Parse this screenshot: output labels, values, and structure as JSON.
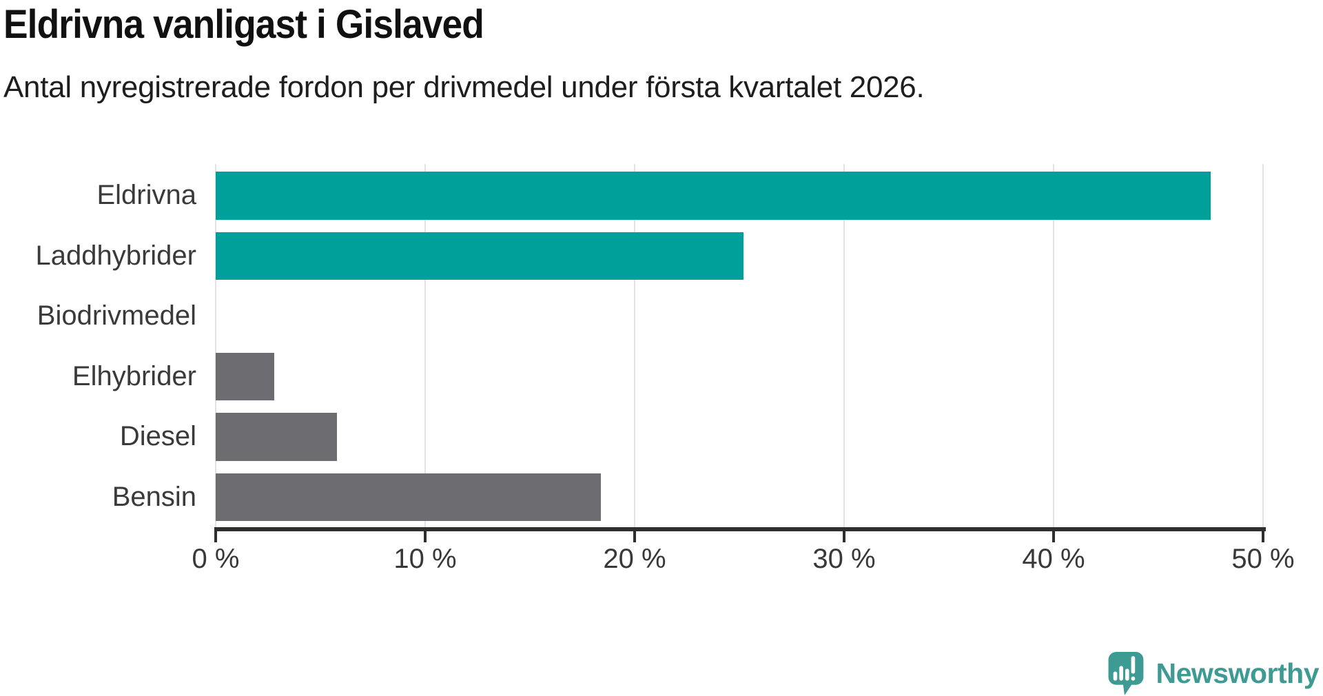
{
  "header": {
    "title": "Eldrivna vanligast i Gislaved",
    "subtitle": "Antal nyregistrerade fordon per drivmedel under första kvartalet 2026."
  },
  "chart_data": {
    "type": "bar",
    "orientation": "horizontal",
    "title": "Eldrivna vanligast i Gislaved",
    "subtitle": "Antal nyregistrerade fordon per drivmedel under första kvartalet 2026.",
    "categories": [
      "Eldrivna",
      "Laddhybrider",
      "Biodrivmedel",
      "Elhybrider",
      "Diesel",
      "Bensin"
    ],
    "values": [
      47.5,
      25.2,
      0,
      2.8,
      5.8,
      18.4
    ],
    "unit": "%",
    "colors": [
      "#00a09a",
      "#00a09a",
      "#6c6c71",
      "#6c6c71",
      "#6c6c71",
      "#6c6c71"
    ],
    "xlim": [
      0,
      50
    ],
    "x_ticks": [
      0,
      10,
      20,
      30,
      40,
      50
    ],
    "x_tick_labels": [
      "0 %",
      "10 %",
      "20 %",
      "30 %",
      "40 %",
      "50 %"
    ],
    "grid": true,
    "gridline_color": "#e3e3e3",
    "axis_color": "#2f2f2f",
    "accent_color": "#00a09a",
    "muted_color": "#6c6c71",
    "legend": "none"
  },
  "footer": {
    "brand": "Newsworthy",
    "brand_color": "#3e9b94",
    "logo_icon": "newsworthy-speech-bubble-bar-chart-icon"
  }
}
